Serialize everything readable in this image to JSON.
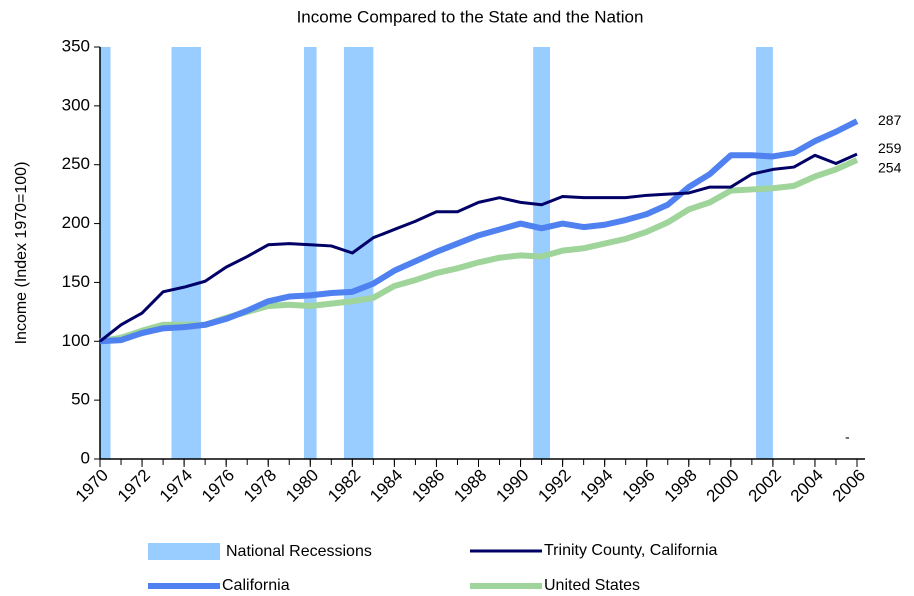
{
  "chart_data": {
    "type": "line",
    "title": "Income Compared to the State and the Nation",
    "y_label": "Income (Index 1970=100)",
    "x": [
      1970,
      1971,
      1972,
      1973,
      1974,
      1975,
      1976,
      1977,
      1978,
      1979,
      1980,
      1981,
      1982,
      1983,
      1984,
      1985,
      1986,
      1987,
      1988,
      1989,
      1990,
      1991,
      1992,
      1993,
      1994,
      1995,
      1996,
      1997,
      1998,
      1999,
      2000,
      2001,
      2002,
      2003,
      2004,
      2005,
      2006
    ],
    "xlim": [
      1970,
      2006
    ],
    "xticks": [
      1970,
      1972,
      1974,
      1976,
      1978,
      1980,
      1982,
      1984,
      1986,
      1988,
      1990,
      1992,
      1994,
      1996,
      1998,
      2000,
      2002,
      2004,
      2006
    ],
    "ylim": [
      0,
      350
    ],
    "yticks": [
      0,
      50,
      100,
      150,
      200,
      250,
      300,
      350
    ],
    "grid": false,
    "recessions": {
      "name": "National Recessions",
      "color": "#99ccff",
      "periods": [
        [
          1970,
          1970.5
        ],
        [
          1973.4,
          1974.8
        ],
        [
          1979.7,
          1980.3
        ],
        [
          1981.6,
          1983.0
        ],
        [
          1990.6,
          1991.4
        ],
        [
          2001.2,
          2002.0
        ]
      ]
    },
    "series": [
      {
        "name": "United States",
        "color": "#9fd49a",
        "width": 6,
        "values": [
          100,
          103,
          109,
          114,
          114,
          114,
          120,
          125,
          130,
          131,
          130,
          132,
          134,
          137,
          147,
          152,
          158,
          162,
          167,
          171,
          173,
          172,
          177,
          179,
          183,
          187,
          193,
          201,
          212,
          218,
          228,
          229,
          230,
          232,
          240,
          246,
          254
        ]
      },
      {
        "name": "California",
        "color": "#4f81f0",
        "width": 6,
        "values": [
          100,
          101,
          107,
          111,
          112,
          114,
          119,
          126,
          134,
          138,
          139,
          141,
          142,
          149,
          160,
          168,
          176,
          183,
          190,
          195,
          200,
          196,
          200,
          197,
          199,
          203,
          208,
          216,
          231,
          242,
          258,
          258,
          257,
          260,
          270,
          278,
          287
        ]
      },
      {
        "name": "Trinity County, California",
        "color": "#000066",
        "width": 3,
        "values": [
          100,
          114,
          124,
          142,
          146,
          151,
          163,
          172,
          182,
          183,
          182,
          181,
          175,
          188,
          195,
          202,
          210,
          210,
          218,
          222,
          218,
          216,
          223,
          222,
          222,
          222,
          224,
          225,
          226,
          231,
          231,
          242,
          246,
          248,
          258,
          251,
          259
        ]
      }
    ],
    "annotation": "-"
  }
}
